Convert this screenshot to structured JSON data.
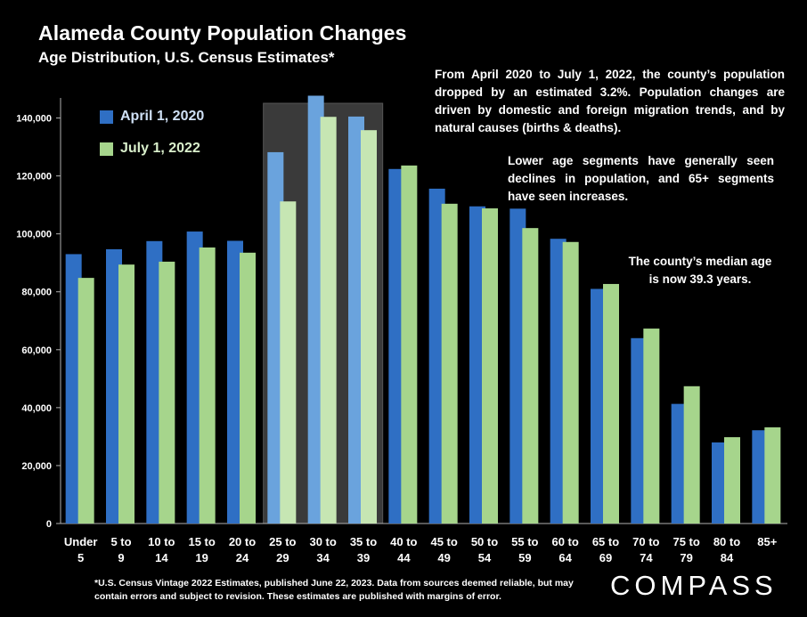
{
  "header": {
    "title": "Alameda County Population Changes",
    "subtitle": "Age Distribution, U.S. Census Estimates*"
  },
  "notes": {
    "note1": "From April 2020 to July 1, 2022, the county’s population dropped by an estimated 3.2%. Population changes are driven by domestic and foreign migration trends, and by natural causes (births & deaths).",
    "note2": "Lower age segments have generally seen declines in population, and 65+ segments have seen increases.",
    "note3": "The county’s median age is now 39.3 years."
  },
  "footnote": "*U.S. Census Vintage 2022 Estimates, published June 22, 2023. Data from sources deemed reliable, but may contain errors and subject to revision. These estimates are published with margins of error.",
  "logo": {
    "text": "COMPASS"
  },
  "colors": {
    "series1": "#2f6fc4",
    "series2": "#a6d58c",
    "series1_highlight": "#6aa3dd",
    "series2_highlight": "#c6e6b3",
    "highlight_band": "#3a3a3a",
    "axis": "#b0b0b0"
  },
  "chart_data": {
    "type": "bar",
    "categories": [
      [
        "Under",
        "5"
      ],
      [
        "5 to",
        "9"
      ],
      [
        "10 to",
        "14"
      ],
      [
        "15 to",
        "19"
      ],
      [
        "20 to",
        "24"
      ],
      [
        "25 to",
        "29"
      ],
      [
        "30 to",
        "34"
      ],
      [
        "35 to",
        "39"
      ],
      [
        "40 to",
        "44"
      ],
      [
        "45 to",
        "49"
      ],
      [
        "50 to",
        "54"
      ],
      [
        "55 to",
        "59"
      ],
      [
        "60 to",
        "64"
      ],
      [
        "65 to",
        "69"
      ],
      [
        "70 to",
        "74"
      ],
      [
        "75 to",
        "79"
      ],
      [
        "80 to",
        "84"
      ],
      [
        "85+",
        ""
      ]
    ],
    "series": [
      {
        "name": "April 1, 2020",
        "values": [
          93000,
          94700,
          97500,
          100800,
          97600,
          128200,
          147700,
          140500,
          122400,
          115600,
          109500,
          108700,
          98300,
          81000,
          64000,
          41300,
          28000,
          32200
        ]
      },
      {
        "name": "July 1, 2022",
        "values": [
          84800,
          89400,
          90400,
          95300,
          93500,
          111200,
          140400,
          135800,
          123600,
          110400,
          108800,
          102000,
          97200,
          82700,
          67300,
          47400,
          29800,
          33200
        ]
      }
    ],
    "highlight_categories": [
      5,
      6,
      7
    ],
    "ylim": [
      0,
      150000
    ],
    "yticks": [
      0,
      20000,
      40000,
      60000,
      80000,
      100000,
      120000,
      140000
    ],
    "ytick_labels": [
      "0",
      "20,000",
      "40,000",
      "60,000",
      "80,000",
      "100,000",
      "120,000",
      "140,000"
    ],
    "grid": false,
    "legend_position": "top-left"
  }
}
